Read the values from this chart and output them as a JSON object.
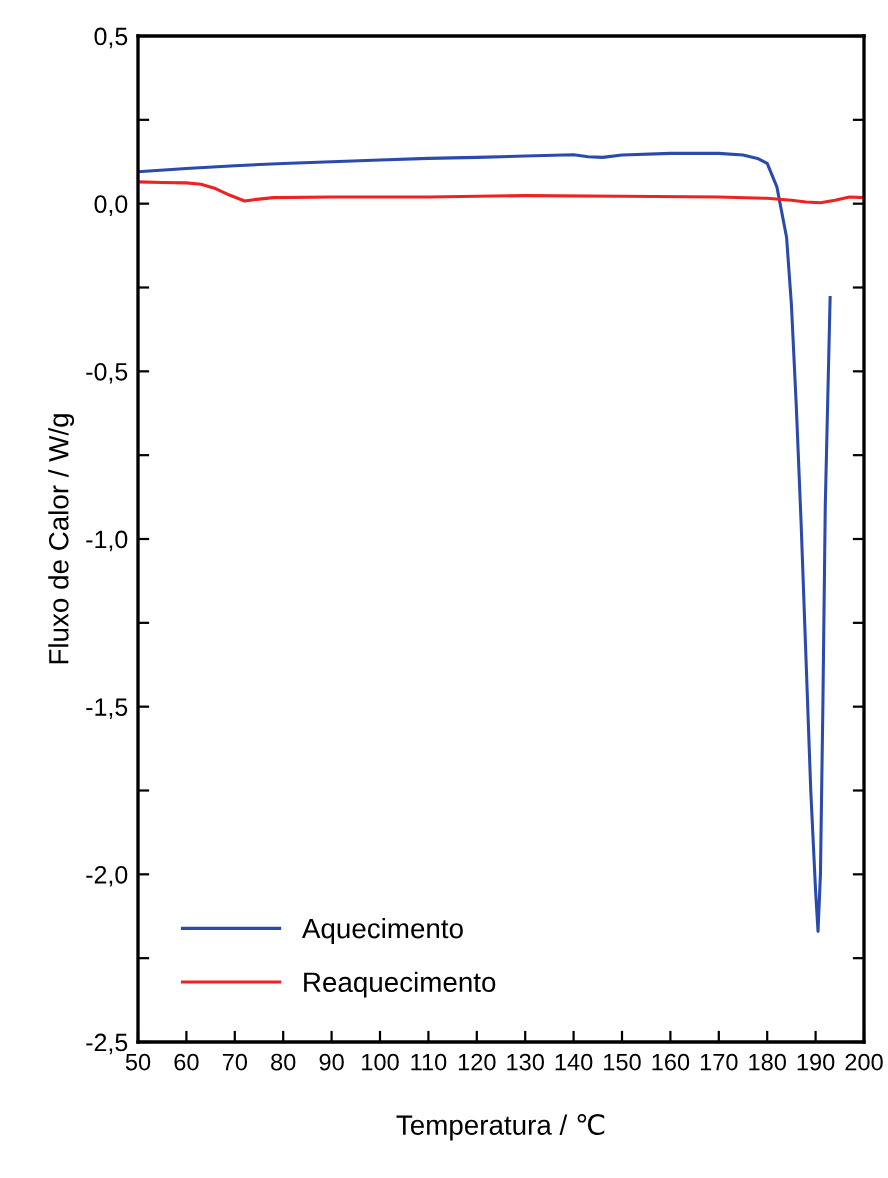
{
  "chart_data": {
    "type": "line",
    "xlabel": "Temperatura / ℃",
    "ylabel": "Fluxo de Calor / W/g",
    "xlim": [
      50,
      200
    ],
    "ylim": [
      -2.5,
      0.5
    ],
    "xticks": [
      50,
      60,
      70,
      80,
      90,
      100,
      110,
      120,
      130,
      140,
      150,
      160,
      170,
      180,
      190,
      200
    ],
    "yticks": [
      {
        "value": -2.5,
        "label": "-2,5"
      },
      {
        "value": -2.25,
        "label": null
      },
      {
        "value": -2.0,
        "label": "-2,0"
      },
      {
        "value": -1.75,
        "label": null
      },
      {
        "value": -1.5,
        "label": "-1,5"
      },
      {
        "value": -1.25,
        "label": null
      },
      {
        "value": -1.0,
        "label": "-1,0"
      },
      {
        "value": -0.75,
        "label": null
      },
      {
        "value": -0.5,
        "label": "-0,5"
      },
      {
        "value": -0.25,
        "label": null
      },
      {
        "value": 0.0,
        "label": "0,0"
      },
      {
        "value": 0.25,
        "label": null
      },
      {
        "value": 0.5,
        "label": "0,5"
      }
    ],
    "grid": false,
    "legend": "bottom left",
    "line_style": "solid",
    "marker": "none",
    "series": [
      {
        "name": "Aquecimento",
        "color": "#2a4bab",
        "x": [
          50,
          60,
          70,
          80,
          90,
          100,
          110,
          120,
          130,
          140,
          143,
          146,
          150,
          160,
          170,
          175,
          178,
          180,
          182,
          184,
          185,
          186,
          187,
          188,
          189,
          190,
          190.5,
          191,
          191.5,
          192,
          193
        ],
        "values": [
          0.095,
          0.105,
          0.113,
          0.12,
          0.125,
          0.13,
          0.135,
          0.138,
          0.142,
          0.146,
          0.14,
          0.138,
          0.145,
          0.15,
          0.15,
          0.145,
          0.135,
          0.12,
          0.05,
          -0.1,
          -0.3,
          -0.6,
          -0.95,
          -1.35,
          -1.75,
          -2.05,
          -2.17,
          -2.0,
          -1.5,
          -0.9,
          -0.28
        ]
      },
      {
        "name": "Reaquecimento",
        "color": "#ee2222",
        "x": [
          50,
          55,
          60,
          63,
          66,
          69,
          72,
          74,
          78,
          90,
          110,
          130,
          150,
          170,
          180,
          185,
          188,
          191,
          194,
          197,
          200
        ],
        "values": [
          0.065,
          0.063,
          0.062,
          0.058,
          0.045,
          0.025,
          0.008,
          0.012,
          0.018,
          0.02,
          0.02,
          0.024,
          0.022,
          0.02,
          0.016,
          0.01,
          0.005,
          0.003,
          0.01,
          0.02,
          0.018
        ]
      }
    ]
  }
}
